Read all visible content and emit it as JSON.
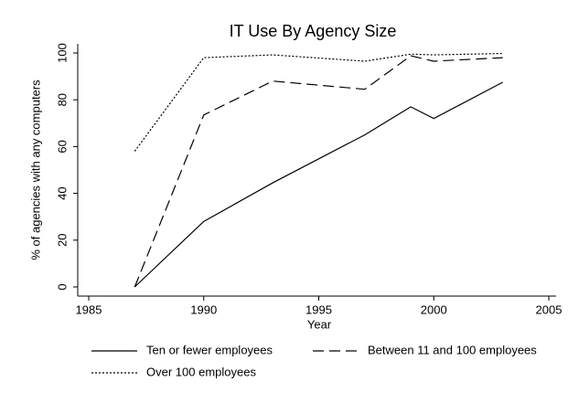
{
  "chart_data": {
    "type": "line",
    "title": "IT Use By Agency Size",
    "x_label": "Year",
    "y_label": "% of agencies with any computers",
    "x": [
      1987,
      1990,
      1993,
      1997,
      1999,
      2000,
      2003
    ],
    "series": [
      {
        "name": "Ten or fewer employees",
        "color": "#000000",
        "style": "solid",
        "values": [
          0,
          28,
          44.5,
          65,
          77,
          72,
          87.5
        ]
      },
      {
        "name": "Between 11 and 100 employees",
        "color": "#000000",
        "style": "dashed",
        "values": [
          0,
          73.5,
          88,
          84.5,
          98.8,
          96.5,
          98
        ]
      },
      {
        "name": "Over 100 employees",
        "color": "#000000",
        "style": "dotted",
        "values": [
          58,
          98,
          99.2,
          96.5,
          99.5,
          99.2,
          99.8
        ]
      }
    ],
    "xlim": [
      1985,
      2005
    ],
    "xticks": [
      1985,
      1990,
      1995,
      2000,
      2005
    ],
    "ylim": [
      0,
      100
    ],
    "yticks": [
      0,
      20,
      40,
      60,
      80,
      100
    ],
    "grid": false,
    "legend": "bottom"
  }
}
